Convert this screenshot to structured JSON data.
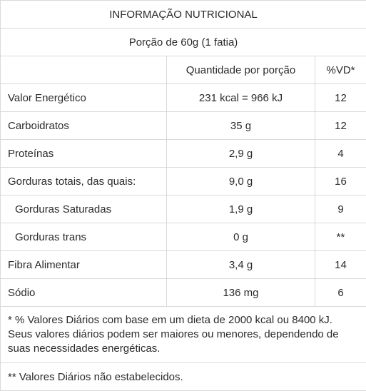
{
  "title": "INFORMAÇÃO NUTRICIONAL",
  "portion": "Porção de 60g (1 fatia)",
  "headers": {
    "blank": "",
    "quantity": "Quantidade por porção",
    "dv": "%VD*"
  },
  "rows": [
    {
      "nutrient": "Valor Energético",
      "amount": "231 kcal = 966 kJ",
      "dv": "12",
      "indent": false
    },
    {
      "nutrient": "Carboidratos",
      "amount": "35 g",
      "dv": "12",
      "indent": false
    },
    {
      "nutrient": "Proteínas",
      "amount": "2,9 g",
      "dv": "4",
      "indent": false
    },
    {
      "nutrient": "Gorduras totais, das quais:",
      "amount": "9,0 g",
      "dv": "16",
      "indent": false
    },
    {
      "nutrient": "Gorduras Saturadas",
      "amount": "1,9 g",
      "dv": "9",
      "indent": true
    },
    {
      "nutrient": "Gorduras trans",
      "amount": "0 g",
      "dv": "**",
      "indent": true
    },
    {
      "nutrient": "Fibra Alimentar",
      "amount": "3,4 g",
      "dv": "14",
      "indent": false
    },
    {
      "nutrient": "Sódio",
      "amount": "136 mg",
      "dv": "6",
      "indent": false
    }
  ],
  "footnote1": "* % Valores Diários com base em um dieta de 2000 kcal ou 8400 kJ. Seus valores diários podem ser maiores ou menores, dependendo de suas necessidades energéticas.",
  "footnote2": "** Valores Diários não estabelecidos."
}
